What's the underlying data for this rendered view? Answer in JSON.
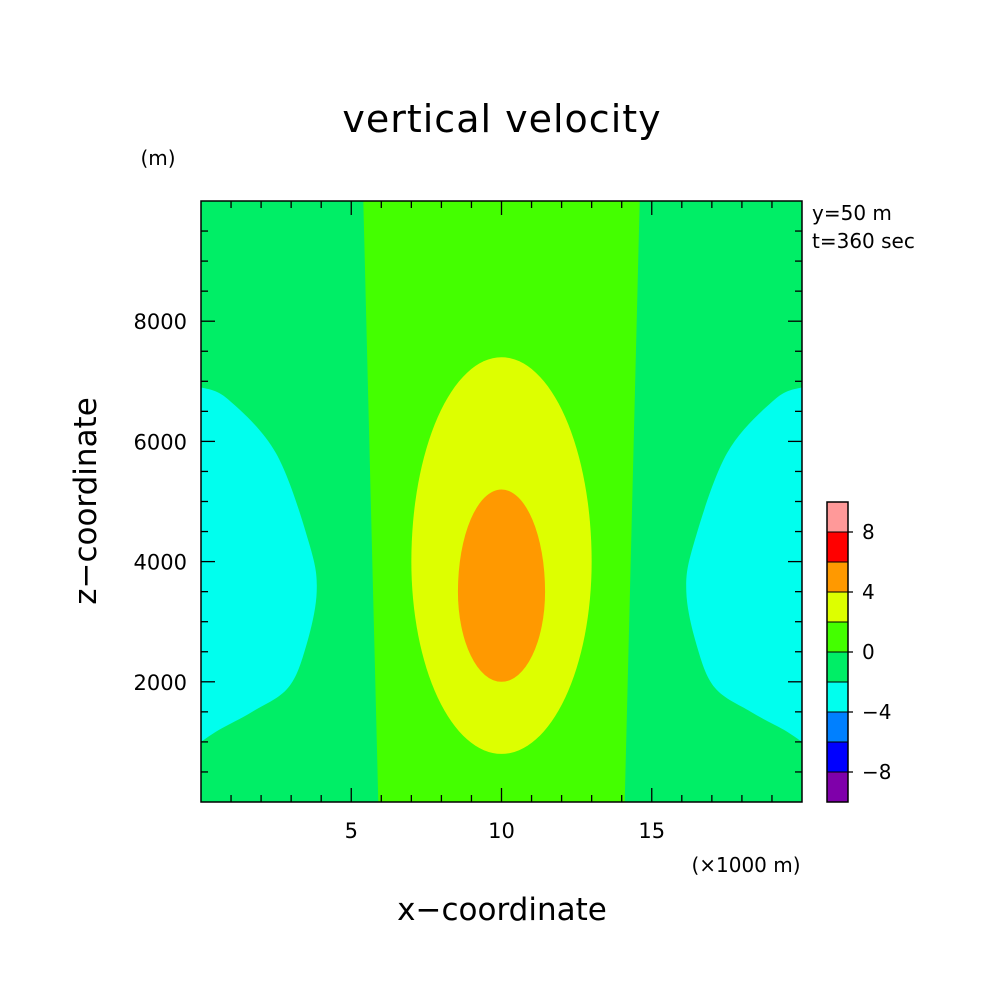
{
  "chart_data": {
    "type": "heatmap",
    "title": "vertical velocity",
    "xlabel": "x−coordinate",
    "ylabel": "z−coordinate",
    "x_unit": "(×1000 m)",
    "y_unit": "(m)",
    "annotations": [
      "y=50 m",
      "t=360 sec"
    ],
    "xlim": [
      0,
      20
    ],
    "ylim": [
      0,
      10000
    ],
    "x_ticks": [
      5,
      10,
      15
    ],
    "x_tick_labels": [
      "5",
      "10",
      "15"
    ],
    "y_ticks": [
      2000,
      4000,
      6000,
      8000
    ],
    "y_tick_labels": [
      "2000",
      "4000",
      "6000",
      "8000"
    ],
    "contour_levels": [
      -10,
      -8,
      -6,
      -4,
      -2,
      0,
      2,
      4,
      6,
      8,
      10
    ],
    "level_colors": [
      "#7f00aa",
      "#0000ff",
      "#0080ff",
      "#00ffee",
      "#00ee66",
      "#44ff00",
      "#ddff00",
      "#ff9900",
      "#ff0000",
      "#ff9999"
    ],
    "colorbar_tick_values": [
      8,
      4,
      0,
      -4,
      -8
    ],
    "colorbar_tick_labels": [
      "8",
      "4",
      "0",
      "−4",
      "−8"
    ],
    "regions": [
      {
        "name": "background",
        "range": [
          -2,
          0
        ],
        "color": "#00ee66"
      },
      {
        "name": "central-column",
        "range": [
          0,
          2
        ],
        "color": "#44ff00",
        "boundary": [
          [
            5.4,
            10000
          ],
          [
            14.6,
            10000
          ],
          [
            14.1,
            0
          ],
          [
            5.9,
            0
          ]
        ]
      },
      {
        "name": "central-inner-updraft",
        "range": [
          2,
          4
        ],
        "color": "#ddff00",
        "center": [
          10,
          4000
        ],
        "x_halfwidth": 3.0,
        "z_top": 7400,
        "z_bottom": 800
      },
      {
        "name": "central-core-updraft",
        "range": [
          4,
          6
        ],
        "color": "#ff9900",
        "center": [
          10,
          3500
        ],
        "x_halfwidth": 1.45,
        "z_top": 5200,
        "z_bottom": 2000
      },
      {
        "name": "left-downdraft",
        "range": [
          -4,
          -2
        ],
        "color": "#00ffee",
        "boundary": [
          [
            0,
            6900
          ],
          [
            0.9,
            6700
          ],
          [
            2.5,
            5800
          ],
          [
            3.6,
            4300
          ],
          [
            3.85,
            3500
          ],
          [
            3.5,
            2600
          ],
          [
            2.9,
            1900
          ],
          [
            1.7,
            1500
          ],
          [
            0.6,
            1200
          ],
          [
            0,
            1000
          ]
        ]
      },
      {
        "name": "right-downdraft",
        "range": [
          -4,
          -2
        ],
        "color": "#00ffee",
        "boundary": [
          [
            20,
            6900
          ],
          [
            19.1,
            6700
          ],
          [
            17.5,
            5800
          ],
          [
            16.4,
            4300
          ],
          [
            16.15,
            3500
          ],
          [
            16.5,
            2600
          ],
          [
            17.1,
            1900
          ],
          [
            18.3,
            1500
          ],
          [
            19.4,
            1200
          ],
          [
            20,
            1000
          ]
        ]
      }
    ]
  }
}
